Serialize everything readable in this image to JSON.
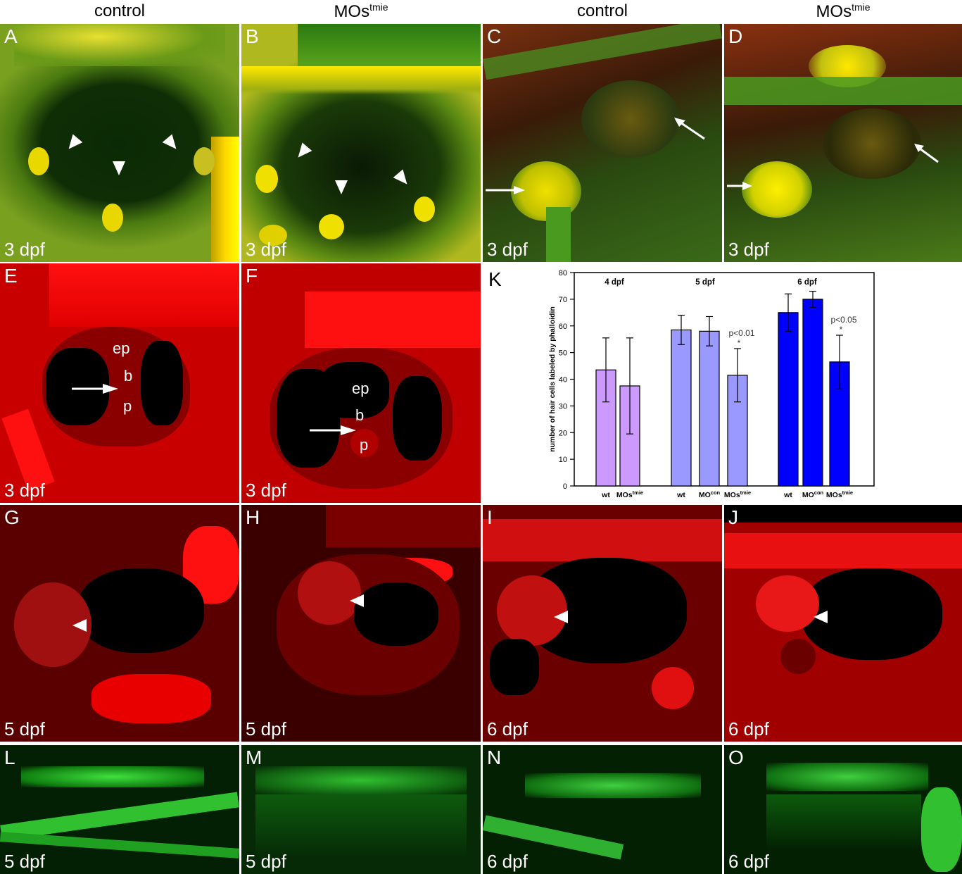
{
  "column_headers": {
    "c1": "control",
    "c2_main": "MOs",
    "c2_sup": "tmie",
    "c3": "control",
    "c4_main": "MOs",
    "c4_sup": "tmie"
  },
  "panels": {
    "A": {
      "letter": "A",
      "stage": "3 dpf"
    },
    "B": {
      "letter": "B",
      "stage": "3 dpf"
    },
    "C": {
      "letter": "C",
      "stage": "3 dpf"
    },
    "D": {
      "letter": "D",
      "stage": "3 dpf"
    },
    "E": {
      "letter": "E",
      "stage": "3 dpf",
      "labels": [
        "ep",
        "b",
        "p"
      ]
    },
    "F": {
      "letter": "F",
      "stage": "3 dpf",
      "labels": [
        "ep",
        "b",
        "p"
      ]
    },
    "G": {
      "letter": "G",
      "stage": "5 dpf"
    },
    "H": {
      "letter": "H",
      "stage": "5 dpf"
    },
    "I": {
      "letter": "I",
      "stage": "6 dpf"
    },
    "J": {
      "letter": "J",
      "stage": "6 dpf"
    },
    "L": {
      "letter": "L",
      "stage": "5 dpf"
    },
    "M": {
      "letter": "M",
      "stage": "5 dpf"
    },
    "N": {
      "letter": "N",
      "stage": "6 dpf"
    },
    "O": {
      "letter": "O",
      "stage": "6 dpf"
    }
  },
  "chart_data": {
    "type": "bar",
    "panel_letter": "K",
    "ylabel": "number of hair cells labeled by phalloidin",
    "ylim": [
      0,
      80
    ],
    "yticks": [
      0,
      10,
      20,
      30,
      40,
      50,
      60,
      70,
      80
    ],
    "grid": false,
    "groups": [
      {
        "name": "4 dpf",
        "color": "#cc99ff",
        "bars": [
          {
            "label_main": "wt",
            "label_sup": "",
            "value": 43.5,
            "err": 12
          },
          {
            "label_main": "MOs",
            "label_sup": "tmie",
            "value": 37.5,
            "err": 18
          }
        ]
      },
      {
        "name": "5 dpf",
        "color": "#9999ff",
        "bars": [
          {
            "label_main": "wt",
            "label_sup": "",
            "value": 58.5,
            "err": 5.5
          },
          {
            "label_main": "MO",
            "label_sup": "con",
            "value": 58,
            "err": 5.5
          },
          {
            "label_main": "MOs",
            "label_sup": "tmie",
            "value": 41.5,
            "err": 10,
            "annotation": "p<0.01",
            "star": "*"
          }
        ]
      },
      {
        "name": "6 dpf",
        "color": "#0000ff",
        "bars": [
          {
            "label_main": "wt",
            "label_sup": "",
            "value": 65,
            "err": 7
          },
          {
            "label_main": "MO",
            "label_sup": "con",
            "value": 70,
            "err": 3
          },
          {
            "label_main": "MOs",
            "label_sup": "tmie",
            "value": 46.5,
            "err": 10,
            "annotation": "p<0.05",
            "star": "*"
          }
        ]
      }
    ]
  }
}
